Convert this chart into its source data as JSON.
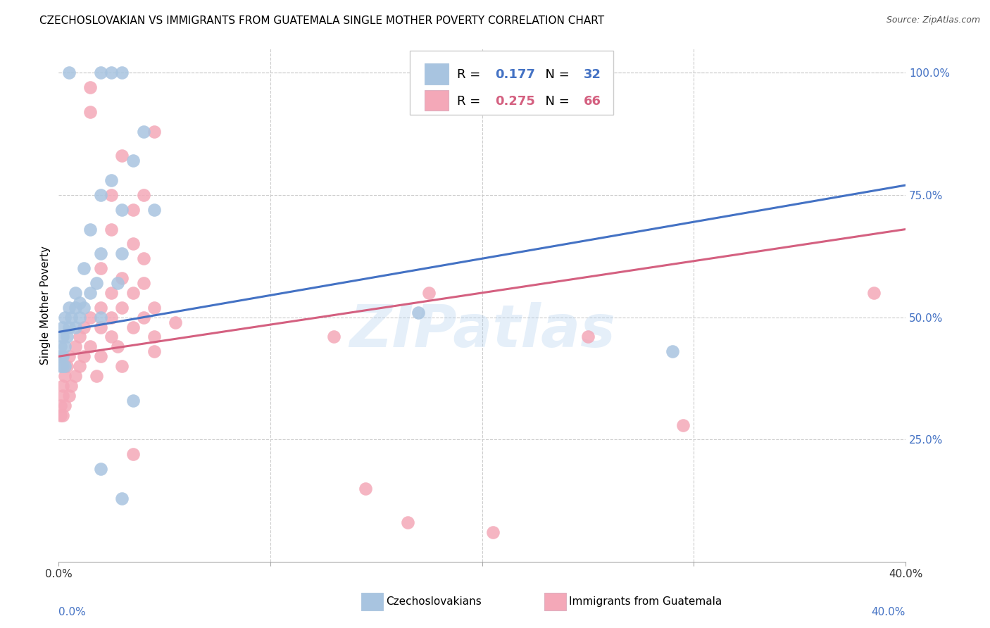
{
  "title": "CZECHOSLOVAKIAN VS IMMIGRANTS FROM GUATEMALA SINGLE MOTHER POVERTY CORRELATION CHART",
  "source": "Source: ZipAtlas.com",
  "ylabel": "Single Mother Poverty",
  "y_ticks": [
    0.25,
    0.5,
    0.75,
    1.0
  ],
  "y_tick_labels": [
    "25.0%",
    "50.0%",
    "75.0%",
    "100.0%"
  ],
  "legend_blue_r": "0.177",
  "legend_blue_n": "32",
  "legend_pink_r": "0.275",
  "legend_pink_n": "66",
  "watermark": "ZIPatlas",
  "blue_color": "#a8c4e0",
  "pink_color": "#f4a8b8",
  "line_blue": "#4472c4",
  "line_pink": "#d46080",
  "blue_scatter": [
    [
      0.5,
      100.0
    ],
    [
      2.0,
      100.0
    ],
    [
      2.5,
      100.0
    ],
    [
      3.0,
      100.0
    ],
    [
      4.0,
      88.0
    ],
    [
      3.5,
      82.0
    ],
    [
      2.5,
      78.0
    ],
    [
      2.0,
      75.0
    ],
    [
      3.0,
      72.0
    ],
    [
      4.5,
      72.0
    ],
    [
      1.5,
      68.0
    ],
    [
      2.0,
      63.0
    ],
    [
      3.0,
      63.0
    ],
    [
      1.2,
      60.0
    ],
    [
      1.8,
      57.0
    ],
    [
      2.8,
      57.0
    ],
    [
      0.8,
      55.0
    ],
    [
      1.5,
      55.0
    ],
    [
      1.0,
      53.0
    ],
    [
      0.5,
      52.0
    ],
    [
      0.8,
      52.0
    ],
    [
      1.2,
      52.0
    ],
    [
      0.3,
      50.0
    ],
    [
      0.6,
      50.0
    ],
    [
      1.0,
      50.0
    ],
    [
      2.0,
      50.0
    ],
    [
      0.2,
      48.0
    ],
    [
      0.5,
      48.0
    ],
    [
      0.8,
      48.0
    ],
    [
      0.2,
      46.0
    ],
    [
      0.4,
      46.0
    ],
    [
      0.1,
      44.0
    ],
    [
      0.3,
      44.0
    ],
    [
      0.1,
      42.0
    ],
    [
      0.2,
      42.0
    ],
    [
      0.1,
      40.0
    ],
    [
      0.2,
      40.0
    ],
    [
      0.3,
      40.0
    ],
    [
      17.0,
      51.0
    ],
    [
      29.0,
      43.0
    ],
    [
      3.5,
      33.0
    ],
    [
      2.0,
      19.0
    ],
    [
      3.0,
      13.0
    ]
  ],
  "pink_scatter": [
    [
      1.5,
      97.0
    ],
    [
      1.5,
      92.0
    ],
    [
      4.5,
      88.0
    ],
    [
      3.0,
      83.0
    ],
    [
      2.5,
      75.0
    ],
    [
      4.0,
      75.0
    ],
    [
      3.5,
      72.0
    ],
    [
      2.5,
      68.0
    ],
    [
      3.5,
      65.0
    ],
    [
      4.0,
      62.0
    ],
    [
      2.0,
      60.0
    ],
    [
      3.0,
      58.0
    ],
    [
      4.0,
      57.0
    ],
    [
      2.5,
      55.0
    ],
    [
      3.5,
      55.0
    ],
    [
      2.0,
      52.0
    ],
    [
      3.0,
      52.0
    ],
    [
      4.5,
      52.0
    ],
    [
      1.5,
      50.0
    ],
    [
      2.5,
      50.0
    ],
    [
      4.0,
      50.0
    ],
    [
      5.5,
      49.0
    ],
    [
      1.2,
      48.0
    ],
    [
      2.0,
      48.0
    ],
    [
      3.5,
      48.0
    ],
    [
      1.0,
      46.0
    ],
    [
      2.5,
      46.0
    ],
    [
      4.5,
      46.0
    ],
    [
      0.8,
      44.0
    ],
    [
      1.5,
      44.0
    ],
    [
      2.8,
      44.0
    ],
    [
      0.5,
      42.0
    ],
    [
      1.2,
      42.0
    ],
    [
      2.0,
      42.0
    ],
    [
      0.4,
      40.0
    ],
    [
      1.0,
      40.0
    ],
    [
      3.0,
      40.0
    ],
    [
      0.3,
      38.0
    ],
    [
      0.8,
      38.0
    ],
    [
      1.8,
      38.0
    ],
    [
      0.2,
      36.0
    ],
    [
      0.6,
      36.0
    ],
    [
      0.2,
      34.0
    ],
    [
      0.5,
      34.0
    ],
    [
      0.1,
      32.0
    ],
    [
      0.3,
      32.0
    ],
    [
      0.1,
      30.0
    ],
    [
      0.2,
      30.0
    ],
    [
      0.1,
      42.0
    ],
    [
      4.5,
      43.0
    ],
    [
      13.0,
      46.0
    ],
    [
      17.5,
      55.0
    ],
    [
      25.0,
      46.0
    ],
    [
      29.5,
      28.0
    ],
    [
      38.5,
      55.0
    ],
    [
      3.5,
      22.0
    ],
    [
      14.5,
      15.0
    ],
    [
      16.5,
      8.0
    ],
    [
      20.5,
      6.0
    ]
  ],
  "xlim": [
    0,
    40.0
  ],
  "ylim": [
    0,
    105.0
  ],
  "blue_line_x": [
    0,
    40.0
  ],
  "blue_line_y": [
    47.0,
    77.0
  ],
  "pink_line_x": [
    0,
    40.0
  ],
  "pink_line_y": [
    42.0,
    68.0
  ]
}
